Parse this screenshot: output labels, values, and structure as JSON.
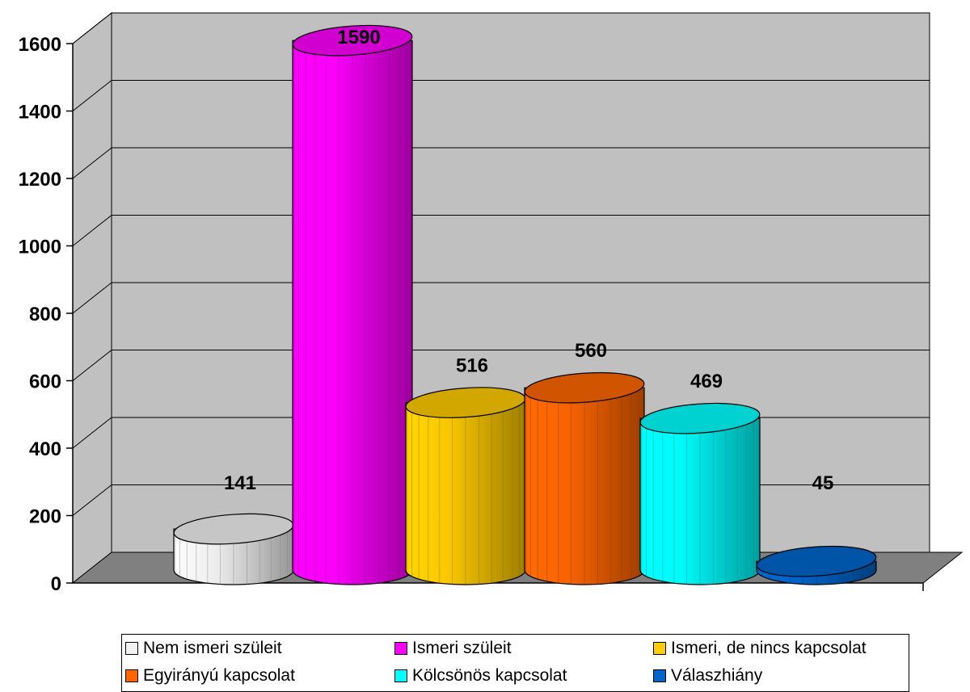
{
  "chart_data": {
    "type": "bar",
    "style": "3d-cylinder",
    "categories": [
      "Nem ismeri szüleit",
      "Ismeri szüleit",
      "Ismeri, de nincs kapcsolat",
      "Egyirányú kapcsolat",
      "Kölcsönös kapcsolat",
      "Válaszhiány"
    ],
    "values": [
      141,
      1590,
      516,
      560,
      469,
      45
    ],
    "value_labels": [
      "141",
      "1590",
      "516",
      "560",
      "469",
      "45"
    ],
    "colors": [
      "#f2f2f2",
      "#ff00ff",
      "#ffcc00",
      "#ff6600",
      "#00ffff",
      "#0066cc"
    ],
    "ylim": [
      0,
      1600
    ],
    "yticks": [
      "0",
      "200",
      "400",
      "600",
      "800",
      "1000",
      "1200",
      "1400",
      "1600"
    ],
    "grid": true,
    "legend_position": "bottom",
    "wall_color": "#c0c0c0",
    "floor_color": "#808080"
  }
}
